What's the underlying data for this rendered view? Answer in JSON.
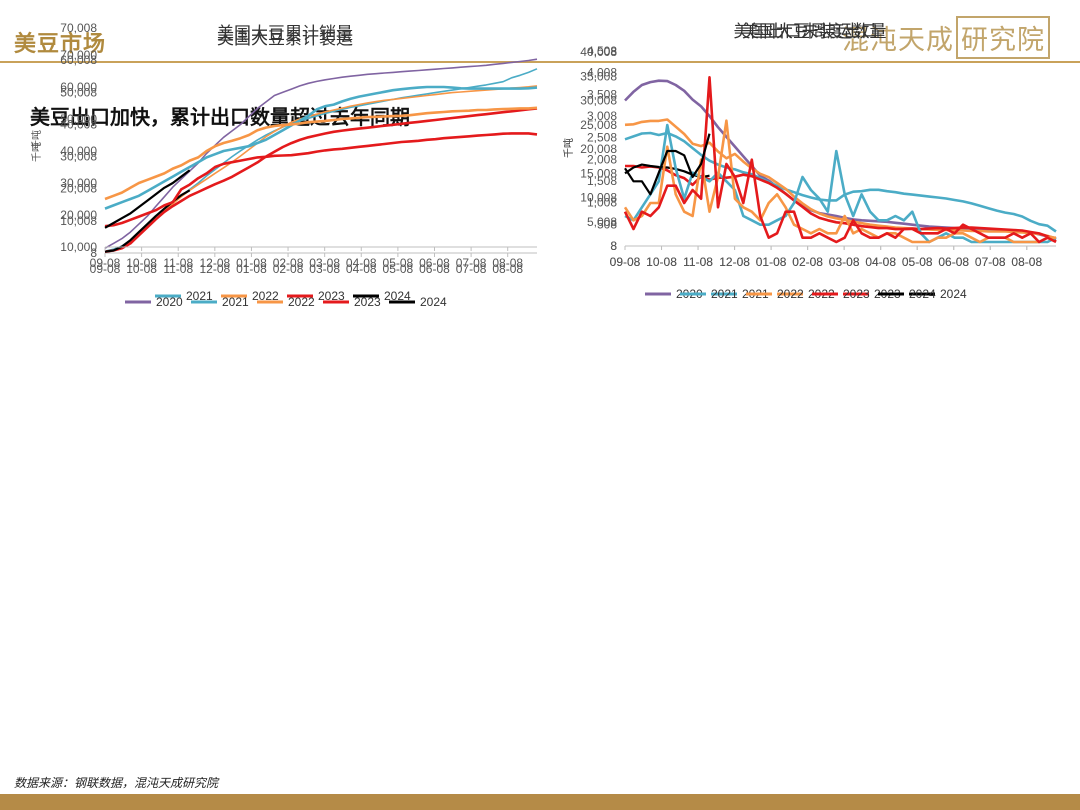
{
  "header": {
    "title": "美豆市场",
    "logo_text": "混沌天成",
    "logo_boxed": "研究院"
  },
  "subtitle": "美豆出口加快，累计出口数量超过去年同期",
  "source": "数据来源：钢联数据，混沌天成研究院",
  "colors": {
    "accent": "#b58b47",
    "s2020": "#8064a2",
    "s2021": "#4bacc6",
    "s2022": "#f79646",
    "s2023": "#e41a1c",
    "s2024": "#000000"
  },
  "chart_data": [
    {
      "id": "c1",
      "type": "line",
      "title": "美国大豆累计装运",
      "ylabel": "千吨",
      "x_ticks": [
        "09-08",
        "10-08",
        "11-08",
        "12-08",
        "01-08",
        "02-08",
        "03-08",
        "04-08",
        "05-08",
        "06-08",
        "07-08",
        "08-08"
      ],
      "y_ticks": [
        "8",
        "10,008",
        "20,008",
        "30,008",
        "40,008",
        "50,008",
        "60,008",
        "70,008"
      ],
      "ylim": [
        8,
        70008
      ],
      "n_weeks": 52,
      "series": [
        {
          "name": "2020",
          "color": "#8064a2",
          "width": 1.6,
          "values": [
            1500,
            3000,
            4500,
            6500,
            9000,
            11500,
            14500,
            17500,
            20500,
            23000,
            25500,
            28000,
            31000,
            33500,
            36000,
            38000,
            40000,
            42500,
            45000,
            47000,
            49000,
            50000,
            51000,
            52000,
            52800,
            53400,
            53900,
            54300,
            54700,
            55000,
            55300,
            55600,
            55800,
            56000,
            56200,
            56400,
            56600,
            56800,
            57000,
            57200,
            57400,
            57600,
            57800,
            58000,
            58200,
            58400,
            58700,
            59000,
            59300,
            59600,
            59900,
            60300
          ]
        },
        {
          "name": "2021",
          "color": "#4bacc6",
          "width": 1.6,
          "values": [
            600,
            1200,
            2200,
            4000,
            6500,
            9000,
            11500,
            13800,
            15800,
            17800,
            19800,
            21800,
            24000,
            26000,
            28000,
            30000,
            31800,
            33500,
            35200,
            36700,
            38000,
            39200,
            40200,
            41100,
            41900,
            42700,
            43400,
            44100,
            44700,
            45300,
            45800,
            46300,
            46800,
            47300,
            47800,
            48300,
            48700,
            49100,
            49500,
            49900,
            50300,
            50700,
            51100,
            51500,
            51900,
            52300,
            52800,
            53300,
            54500,
            55300,
            56200,
            57300
          ]
        },
        {
          "name": "2022",
          "color": "#f79646",
          "width": 1.6,
          "values": [
            400,
            900,
            1800,
            3300,
            5500,
            8000,
            10500,
            13000,
            15300,
            17500,
            19500,
            21300,
            23000,
            24800,
            26500,
            28300,
            30200,
            32200,
            34200,
            36200,
            37800,
            39300,
            40700,
            41700,
            42500,
            43200,
            43900,
            44500,
            45100,
            45700,
            46200,
            46700,
            47100,
            47500,
            47800,
            48100,
            48400,
            48700,
            49000,
            49300,
            49600,
            49900,
            50100,
            50300,
            50500,
            50700,
            50900,
            51100,
            51300,
            51500,
            51700,
            52000
          ]
        },
        {
          "name": "2023",
          "color": "#e41a1c",
          "width": 2.6,
          "values": [
            400,
            800,
            1500,
            3000,
            5500,
            8000,
            10500,
            12800,
            14600,
            16200,
            17800,
            19000,
            20200,
            21400,
            22500,
            23700,
            25200,
            26700,
            28200,
            30000,
            31500,
            33000,
            34200,
            35200,
            36000,
            36600,
            37200,
            37700,
            38100,
            38400,
            38700,
            39000,
            39300,
            39600,
            39900,
            40200,
            40500,
            40800,
            41100,
            41400,
            41700,
            42000,
            42300,
            42600,
            42900,
            43200,
            43500,
            43800,
            44100,
            44400,
            44700,
            45000
          ]
        },
        {
          "name": "2024",
          "color": "#000000",
          "width": 2.2,
          "values": [
            400,
            800,
            2000,
            4000,
            6500,
            9000,
            11500,
            13800,
            16000,
            18000,
            19500
          ]
        }
      ]
    },
    {
      "id": "c2",
      "type": "line",
      "title": "美国出口未装运数量",
      "ylabel": "千吨",
      "x_ticks": [
        "09-08",
        "10-08",
        "11-08",
        "12-08",
        "01-08",
        "02-08",
        "03-08",
        "04-08",
        "05-08",
        "06-08",
        "07-08",
        "08-08"
      ],
      "y_ticks": [
        "8",
        "5,008",
        "10,008",
        "15,008",
        "20,008",
        "25,008",
        "30,008",
        "35,008",
        "40,008"
      ],
      "ylim": [
        8,
        40008
      ],
      "n_weeks": 52,
      "series": [
        {
          "name": "2020",
          "color": "#8064a2",
          "width": 2.6,
          "values": [
            30000,
            31800,
            33200,
            33800,
            34100,
            34000,
            33200,
            32000,
            30200,
            28800,
            26800,
            24500,
            22500,
            20500,
            18500,
            16500,
            14500,
            13500,
            12200,
            10800,
            9400,
            8200,
            7400,
            6800,
            6500,
            6200,
            5800,
            5500,
            5300,
            5200,
            5100,
            5000,
            4800,
            4600,
            4400,
            4200,
            4000,
            3900,
            3800,
            3700,
            3600,
            3500,
            3400,
            3300,
            3200,
            3100,
            3000,
            2900,
            2800,
            2400,
            2000,
            1600
          ]
        },
        {
          "name": "2021",
          "color": "#4bacc6",
          "width": 2.6,
          "values": [
            22000,
            22600,
            23200,
            23300,
            22900,
            23300,
            22600,
            21600,
            20200,
            18800,
            17600,
            16800,
            16200,
            15800,
            15200,
            14800,
            14000,
            13200,
            12400,
            11700,
            11100,
            10500,
            10000,
            9600,
            9400,
            9400,
            10600,
            11200,
            11300,
            11600,
            11600,
            11300,
            11100,
            10800,
            10600,
            10400,
            10200,
            10000,
            9800,
            9500,
            9200,
            8800,
            8300,
            7800,
            7300,
            6900,
            6600,
            6100,
            5200,
            4500,
            4200,
            3000
          ]
        },
        {
          "name": "2022",
          "color": "#f79646",
          "width": 2.6,
          "values": [
            25000,
            25100,
            25600,
            25800,
            25800,
            26100,
            24600,
            23100,
            21100,
            20600,
            21300,
            19500,
            18100,
            19000,
            17400,
            16000,
            14900,
            14200,
            13000,
            11800,
            10200,
            8800,
            7600,
            6700,
            6100,
            5700,
            5400,
            5000,
            4700,
            4400,
            4200,
            4000,
            3800,
            3700,
            3600,
            3500,
            3400,
            3300,
            3300,
            3200,
            3200,
            3100,
            3100,
            3000,
            3000,
            3000,
            2900,
            2800,
            2700,
            2500,
            2100,
            1600
          ]
        },
        {
          "name": "2023",
          "color": "#e41a1c",
          "width": 2.6,
          "values": [
            16500,
            16500,
            16200,
            16400,
            16200,
            15600,
            14600,
            14000,
            12600,
            14400,
            13700,
            14100,
            14100,
            14300,
            14700,
            14400,
            13700,
            13000,
            12000,
            10800,
            9400,
            8100,
            6700,
            5800,
            5300,
            4900,
            4700,
            4400,
            4100,
            3900,
            3700,
            3700,
            3500,
            3500,
            3600,
            3500,
            3600,
            3700,
            3600,
            3700,
            3800,
            3800,
            3700,
            3600,
            3500,
            3400,
            3300,
            3200,
            2900,
            2600,
            2000,
            1000
          ]
        },
        {
          "name": "2024",
          "color": "#000000",
          "width": 2.2,
          "values": [
            15000,
            16200,
            16800,
            16500,
            16300,
            16200,
            15900,
            15400,
            14700,
            14200,
            14500
          ]
        }
      ]
    },
    {
      "id": "c3",
      "type": "line",
      "title": "美国大豆累计销量",
      "ylabel": "千吨",
      "x_ticks": [
        "09-08",
        "10-08",
        "11-08",
        "12-08",
        "01-08",
        "02-08",
        "03-08",
        "04-08",
        "05-08",
        "06-08",
        "07-08",
        "08-08"
      ],
      "y_ticks": [
        "10,000",
        "20,000",
        "30,000",
        "40,000",
        "50,000",
        "60,000",
        "70,000"
      ],
      "ylim": [
        10000,
        70000
      ],
      "n_weeks": 52,
      "series": [
        {
          "name": "2021",
          "color": "#4bacc6",
          "width": 2.6,
          "values": [
            22000,
            23000,
            24000,
            25000,
            26000,
            27500,
            29000,
            30500,
            32000,
            33500,
            35000,
            36500,
            38000,
            39000,
            40000,
            40500,
            41000,
            41500,
            42500,
            43500,
            45000,
            46500,
            48000,
            49500,
            51000,
            53000,
            54000,
            54500,
            55500,
            56300,
            57000,
            57500,
            58000,
            58500,
            59000,
            59300,
            59600,
            59800,
            60000,
            60000,
            60000,
            59800,
            59600,
            59500,
            59500,
            59500,
            59500,
            59500,
            59500,
            59500,
            59600,
            59800
          ]
        },
        {
          "name": "2022",
          "color": "#f79646",
          "width": 2.6,
          "values": [
            25000,
            26000,
            27000,
            28500,
            30000,
            31000,
            32000,
            33000,
            34500,
            35500,
            37000,
            38000,
            40000,
            41500,
            42500,
            43200,
            44000,
            45000,
            46500,
            47300,
            47800,
            48100,
            48300,
            48600,
            49000,
            49200,
            49400,
            49700,
            50000,
            50200,
            50400,
            50600,
            50700,
            50800,
            50900,
            51000,
            51200,
            51500,
            51800,
            52000,
            52200,
            52400,
            52500,
            52600,
            52800,
            52800,
            53000,
            53100,
            53200,
            53300,
            53300,
            53500
          ]
        },
        {
          "name": "2023",
          "color": "#e41a1c",
          "width": 2.6,
          "values": [
            16500,
            16800,
            17500,
            18500,
            19500,
            20500,
            21500,
            23000,
            24000,
            28000,
            29500,
            31500,
            33000,
            35000,
            36000,
            36500,
            37000,
            37500,
            38000,
            38200,
            38500,
            38600,
            38700,
            39000,
            39300,
            39800,
            40200,
            40500,
            40700,
            41000,
            41300,
            41600,
            41900,
            42200,
            42500,
            42800,
            43000,
            43200,
            43500,
            43700,
            44000,
            44200,
            44400,
            44600,
            44800,
            45000,
            45200,
            45400,
            45500,
            45500,
            45500,
            45200
          ]
        },
        {
          "name": "2024",
          "color": "#000000",
          "width": 2.2,
          "values": [
            16000,
            17500,
            19000,
            20500,
            22500,
            24500,
            26500,
            28500,
            30000,
            32000,
            34000
          ]
        }
      ]
    },
    {
      "id": "c4",
      "type": "line",
      "title": "美国大豆周度出口",
      "ylabel": "千吨",
      "x_ticks": [
        "09-08",
        "10-08",
        "11-08",
        "12-08",
        "01-08",
        "02-08",
        "03-08",
        "04-08",
        "05-08",
        "06-08",
        "07-08",
        "08-08"
      ],
      "y_ticks": [
        "8",
        "508",
        "1,008",
        "1,508",
        "2,008",
        "2,508",
        "3,008",
        "3,508",
        "4,008",
        "4,508"
      ],
      "ylim": [
        8,
        4508
      ],
      "n_weeks": 52,
      "series": [
        {
          "name": "2021",
          "color": "#4bacc6",
          "width": 2.6,
          "values": [
            700,
            600,
            900,
            1200,
            1500,
            2800,
            1800,
            1100,
            1700,
            1600,
            1500,
            1700,
            1500,
            1300,
            700,
            600,
            500,
            500,
            600,
            700,
            1000,
            1600,
            1300,
            1100,
            800,
            2200,
            1200,
            700,
            1200,
            800,
            600,
            600,
            700,
            600,
            800,
            300,
            100,
            200,
            300,
            200,
            200,
            100,
            100,
            100,
            100,
            100,
            100,
            100,
            100,
            100,
            100,
            200
          ]
        },
        {
          "name": "2022",
          "color": "#f79646",
          "width": 2.6,
          "values": [
            900,
            600,
            700,
            1000,
            1000,
            2300,
            1200,
            800,
            700,
            2000,
            800,
            1600,
            2900,
            1100,
            900,
            800,
            600,
            1000,
            1200,
            900,
            500,
            400,
            300,
            400,
            300,
            300,
            700,
            300,
            400,
            300,
            200,
            300,
            300,
            200,
            100,
            100,
            100,
            200,
            200,
            300,
            300,
            200,
            100,
            200,
            200,
            200,
            100,
            100,
            100,
            100,
            200,
            200
          ]
        },
        {
          "name": "2023",
          "color": "#e41a1c",
          "width": 2.6,
          "values": [
            800,
            400,
            800,
            700,
            900,
            1400,
            1400,
            1000,
            1300,
            1100,
            3900,
            900,
            1900,
            1600,
            1000,
            2000,
            700,
            200,
            300,
            800,
            800,
            200,
            200,
            300,
            200,
            100,
            200,
            600,
            300,
            200,
            200,
            300,
            200,
            400,
            400,
            300,
            300,
            300,
            400,
            300,
            500,
            400,
            300,
            200,
            200,
            200,
            300,
            200,
            300,
            100,
            200,
            100
          ]
        },
        {
          "name": "2024",
          "color": "#000000",
          "width": 2.2,
          "values": [
            1800,
            1500,
            1500,
            1200,
            1700,
            2200,
            2200,
            2100,
            1600,
            1900,
            2600
          ]
        }
      ]
    }
  ]
}
